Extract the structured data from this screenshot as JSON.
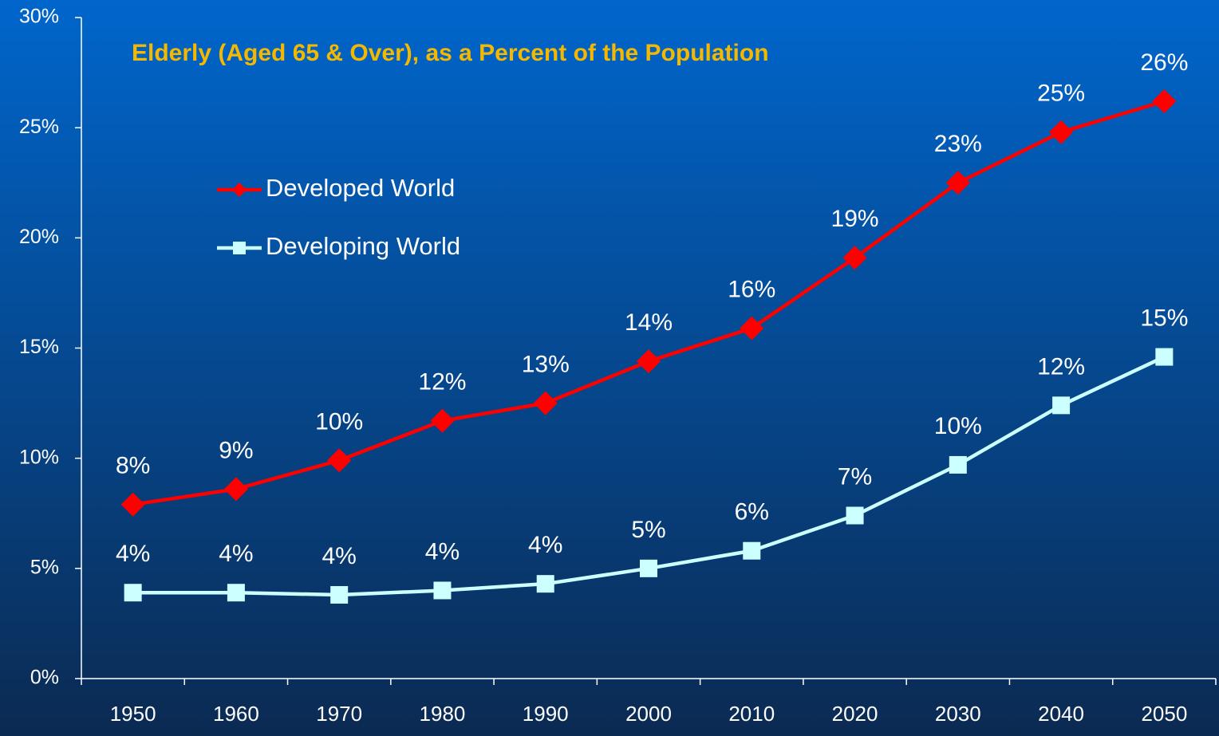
{
  "chart_data": {
    "type": "line",
    "title": "Elderly (Aged 65 & Over), as a Percent of the Population",
    "categories": [
      "1950",
      "1960",
      "1970",
      "1980",
      "1990",
      "2000",
      "2010",
      "2020",
      "2030",
      "2040",
      "2050"
    ],
    "series": [
      {
        "name": "Developed World",
        "color": "#ff0000",
        "marker": "diamond",
        "values": [
          7.9,
          8.6,
          9.9,
          11.7,
          12.5,
          14.4,
          15.9,
          19.1,
          22.5,
          24.8,
          26.2
        ],
        "value_labels": [
          "8%",
          "9%",
          "10%",
          "12%",
          "13%",
          "14%",
          "16%",
          "19%",
          "23%",
          "25%",
          "26%"
        ]
      },
      {
        "name": "Developing World",
        "color": "#ccffff",
        "marker": "square",
        "values": [
          3.9,
          3.9,
          3.8,
          4.0,
          4.3,
          5.0,
          5.8,
          7.4,
          9.7,
          12.4,
          14.6
        ],
        "value_labels": [
          "4%",
          "4%",
          "4%",
          "4%",
          "4%",
          "5%",
          "6%",
          "7%",
          "10%",
          "12%",
          "15%"
        ]
      }
    ],
    "ylim": [
      0,
      30
    ],
    "yticks": [
      {
        "value": 0,
        "label": "0%"
      },
      {
        "value": 5,
        "label": "5%"
      },
      {
        "value": 10,
        "label": "10%"
      },
      {
        "value": 15,
        "label": "15%"
      },
      {
        "value": 20,
        "label": "20%"
      },
      {
        "value": 25,
        "label": "25%"
      },
      {
        "value": 30,
        "label": "30%"
      }
    ]
  }
}
